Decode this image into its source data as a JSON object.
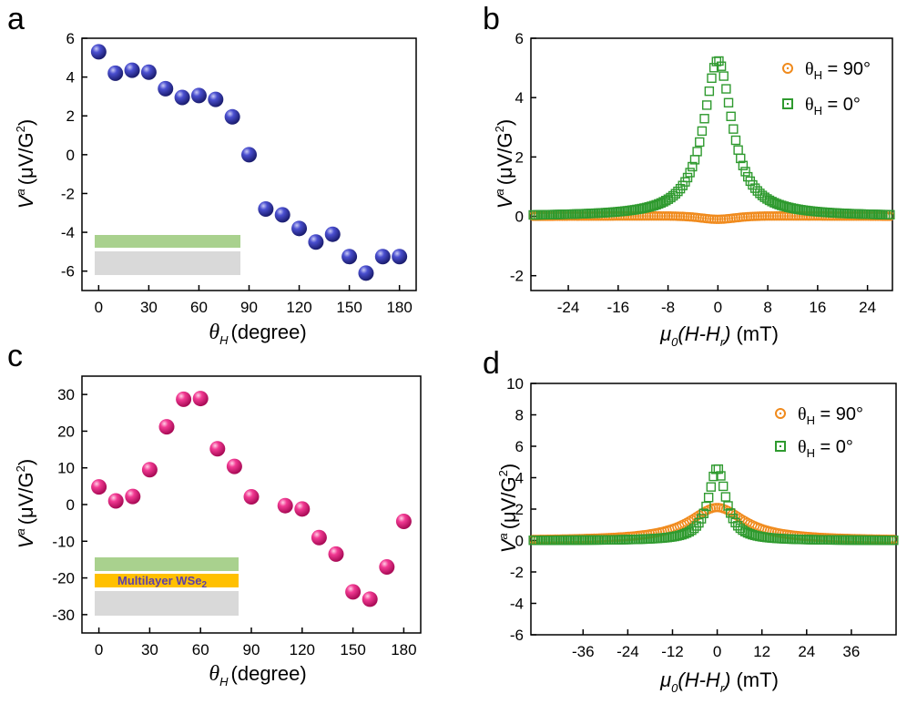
{
  "figure": {
    "panel_labels": [
      "a",
      "b",
      "c",
      "d"
    ],
    "xlabel_theta": {
      "sym": "θ",
      "sub": "H",
      "text": "(degree)"
    },
    "xlabel_field": {
      "pre": "μ",
      "sub0": "0",
      "mid": "(H-H",
      "subr": "r",
      "post": ")",
      "unit": "(mT)"
    },
    "ylabel": {
      "V": "V",
      "a": "a",
      "text": "(μV/G",
      "pow": "2",
      "close": ")"
    },
    "legend": [
      {
        "theta": "θ",
        "sub": "H",
        "text": " = 90°",
        "color": "#f08a1c"
      },
      {
        "theta": "θ",
        "sub": "H",
        "text": " = 0°",
        "color": "#2f9a2f"
      }
    ],
    "inset_c_label": {
      "main": "Multilayer WSe",
      "sub": "2"
    },
    "colors": {
      "blue": "#2b2f9e",
      "pink": "#e8157a",
      "orange": "#f08a1c",
      "green": "#2f9a2f",
      "inset_green": "#a9d18e",
      "inset_gray": "#d9d9d9",
      "inset_yellow": "#ffc000"
    }
  },
  "chart_data": [
    {
      "type": "scatter",
      "panel": "a",
      "xlabel": "θH (degree)",
      "ylabel": "Va (μV/G2)",
      "xlim": [
        -10,
        190
      ],
      "ylim": [
        -7,
        6
      ],
      "xticks": [
        0,
        30,
        60,
        90,
        120,
        150,
        180
      ],
      "yticks": [
        -6,
        -4,
        -2,
        0,
        2,
        4,
        6
      ],
      "x": [
        0,
        10,
        20,
        30,
        40,
        50,
        60,
        70,
        80,
        90,
        100,
        110,
        120,
        130,
        140,
        150,
        160,
        170,
        180
      ],
      "y": [
        5.3,
        4.2,
        4.35,
        4.25,
        3.4,
        2.95,
        3.05,
        2.85,
        1.95,
        0.0,
        -2.8,
        -3.1,
        -3.8,
        -4.5,
        -4.1,
        -5.25,
        -6.1,
        -5.25,
        -5.25
      ]
    },
    {
      "type": "line",
      "panel": "b",
      "xlabel": "μ0(H-Hr) (mT)",
      "ylabel": "Va (μV/G2)",
      "xlim": [
        -30,
        28
      ],
      "ylim": [
        -2.5,
        6
      ],
      "xticks": [
        -24,
        -16,
        -8,
        0,
        8,
        16,
        24
      ],
      "yticks": [
        -2,
        0,
        2,
        4,
        6
      ],
      "series": [
        {
          "name": "θH = 90°",
          "marker": "circle",
          "color": "#f08a1c",
          "shape": "antisymmetric",
          "amplitude": -0.1,
          "width": 6,
          "offset": 0.0
        },
        {
          "name": "θH = 0°",
          "marker": "square",
          "color": "#2f9a2f",
          "shape": "lorentzian",
          "amplitude": 5.25,
          "width": 2.8,
          "offset": 0.0
        }
      ]
    },
    {
      "type": "scatter",
      "panel": "c",
      "xlabel": "θH (degree)",
      "ylabel": "Va (μV/G2)",
      "xlim": [
        -10,
        190
      ],
      "ylim": [
        -35,
        35
      ],
      "xticks": [
        0,
        30,
        60,
        90,
        120,
        150,
        180
      ],
      "yticks": [
        -30,
        -20,
        -10,
        0,
        10,
        20,
        30
      ],
      "x": [
        0,
        10,
        20,
        30,
        40,
        50,
        60,
        70,
        80,
        90,
        110,
        120,
        130,
        140,
        150,
        160,
        170,
        180
      ],
      "y": [
        4.8,
        1.0,
        2.2,
        9.5,
        21.2,
        28.7,
        28.9,
        15.2,
        10.4,
        2.1,
        -0.3,
        -1.2,
        -9.0,
        -13.5,
        -23.8,
        -25.8,
        -17.0,
        -4.6
      ]
    },
    {
      "type": "line",
      "panel": "d",
      "xlabel": "μ0(H-Hr) (mT)",
      "ylabel": "Va (μV/G2)",
      "xlim": [
        -50,
        48
      ],
      "ylim": [
        -6,
        10
      ],
      "xticks": [
        -36,
        -24,
        -12,
        0,
        12,
        24,
        36
      ],
      "yticks": [
        -6,
        -4,
        -2,
        0,
        2,
        4,
        6,
        8,
        10
      ],
      "series": [
        {
          "name": "θH = 90°",
          "marker": "circle",
          "color": "#f08a1c",
          "shape": "lorentzian",
          "amplitude": 2.1,
          "width": 9,
          "offset": 0.0
        },
        {
          "name": "θH = 0°",
          "marker": "square",
          "color": "#2f9a2f",
          "shape": "lorentzian",
          "amplitude": 4.6,
          "width": 2.8,
          "offset": 0.0
        }
      ]
    }
  ]
}
